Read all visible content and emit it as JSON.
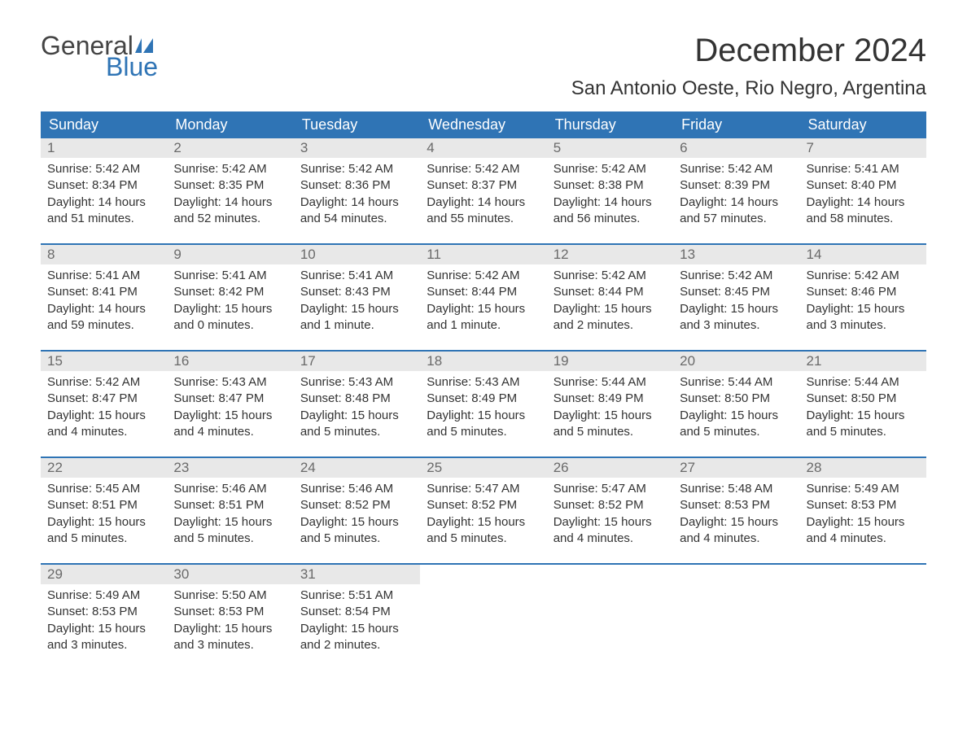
{
  "branding": {
    "logo_word1": "General",
    "logo_word2": "Blue",
    "logo_color_text": "#444444",
    "logo_color_accent": "#2f74b5"
  },
  "title": {
    "month_year": "December 2024",
    "location": "San Antonio Oeste, Rio Negro, Argentina"
  },
  "style": {
    "header_bg": "#2f74b5",
    "header_text": "#ffffff",
    "daynum_bg": "#e8e8e8",
    "daynum_text": "#6a6a6a",
    "body_text": "#333333",
    "week_divider": "#2f74b5",
    "page_bg": "#ffffff",
    "month_title_fontsize": 40,
    "location_fontsize": 24,
    "dayheader_fontsize": 18,
    "daynum_fontsize": 17,
    "cell_fontsize": 15
  },
  "day_headers": [
    "Sunday",
    "Monday",
    "Tuesday",
    "Wednesday",
    "Thursday",
    "Friday",
    "Saturday"
  ],
  "weeks": [
    [
      {
        "num": "1",
        "sunrise": "Sunrise: 5:42 AM",
        "sunset": "Sunset: 8:34 PM",
        "daylight1": "Daylight: 14 hours",
        "daylight2": "and 51 minutes."
      },
      {
        "num": "2",
        "sunrise": "Sunrise: 5:42 AM",
        "sunset": "Sunset: 8:35 PM",
        "daylight1": "Daylight: 14 hours",
        "daylight2": "and 52 minutes."
      },
      {
        "num": "3",
        "sunrise": "Sunrise: 5:42 AM",
        "sunset": "Sunset: 8:36 PM",
        "daylight1": "Daylight: 14 hours",
        "daylight2": "and 54 minutes."
      },
      {
        "num": "4",
        "sunrise": "Sunrise: 5:42 AM",
        "sunset": "Sunset: 8:37 PM",
        "daylight1": "Daylight: 14 hours",
        "daylight2": "and 55 minutes."
      },
      {
        "num": "5",
        "sunrise": "Sunrise: 5:42 AM",
        "sunset": "Sunset: 8:38 PM",
        "daylight1": "Daylight: 14 hours",
        "daylight2": "and 56 minutes."
      },
      {
        "num": "6",
        "sunrise": "Sunrise: 5:42 AM",
        "sunset": "Sunset: 8:39 PM",
        "daylight1": "Daylight: 14 hours",
        "daylight2": "and 57 minutes."
      },
      {
        "num": "7",
        "sunrise": "Sunrise: 5:41 AM",
        "sunset": "Sunset: 8:40 PM",
        "daylight1": "Daylight: 14 hours",
        "daylight2": "and 58 minutes."
      }
    ],
    [
      {
        "num": "8",
        "sunrise": "Sunrise: 5:41 AM",
        "sunset": "Sunset: 8:41 PM",
        "daylight1": "Daylight: 14 hours",
        "daylight2": "and 59 minutes."
      },
      {
        "num": "9",
        "sunrise": "Sunrise: 5:41 AM",
        "sunset": "Sunset: 8:42 PM",
        "daylight1": "Daylight: 15 hours",
        "daylight2": "and 0 minutes."
      },
      {
        "num": "10",
        "sunrise": "Sunrise: 5:41 AM",
        "sunset": "Sunset: 8:43 PM",
        "daylight1": "Daylight: 15 hours",
        "daylight2": "and 1 minute."
      },
      {
        "num": "11",
        "sunrise": "Sunrise: 5:42 AM",
        "sunset": "Sunset: 8:44 PM",
        "daylight1": "Daylight: 15 hours",
        "daylight2": "and 1 minute."
      },
      {
        "num": "12",
        "sunrise": "Sunrise: 5:42 AM",
        "sunset": "Sunset: 8:44 PM",
        "daylight1": "Daylight: 15 hours",
        "daylight2": "and 2 minutes."
      },
      {
        "num": "13",
        "sunrise": "Sunrise: 5:42 AM",
        "sunset": "Sunset: 8:45 PM",
        "daylight1": "Daylight: 15 hours",
        "daylight2": "and 3 minutes."
      },
      {
        "num": "14",
        "sunrise": "Sunrise: 5:42 AM",
        "sunset": "Sunset: 8:46 PM",
        "daylight1": "Daylight: 15 hours",
        "daylight2": "and 3 minutes."
      }
    ],
    [
      {
        "num": "15",
        "sunrise": "Sunrise: 5:42 AM",
        "sunset": "Sunset: 8:47 PM",
        "daylight1": "Daylight: 15 hours",
        "daylight2": "and 4 minutes."
      },
      {
        "num": "16",
        "sunrise": "Sunrise: 5:43 AM",
        "sunset": "Sunset: 8:47 PM",
        "daylight1": "Daylight: 15 hours",
        "daylight2": "and 4 minutes."
      },
      {
        "num": "17",
        "sunrise": "Sunrise: 5:43 AM",
        "sunset": "Sunset: 8:48 PM",
        "daylight1": "Daylight: 15 hours",
        "daylight2": "and 5 minutes."
      },
      {
        "num": "18",
        "sunrise": "Sunrise: 5:43 AM",
        "sunset": "Sunset: 8:49 PM",
        "daylight1": "Daylight: 15 hours",
        "daylight2": "and 5 minutes."
      },
      {
        "num": "19",
        "sunrise": "Sunrise: 5:44 AM",
        "sunset": "Sunset: 8:49 PM",
        "daylight1": "Daylight: 15 hours",
        "daylight2": "and 5 minutes."
      },
      {
        "num": "20",
        "sunrise": "Sunrise: 5:44 AM",
        "sunset": "Sunset: 8:50 PM",
        "daylight1": "Daylight: 15 hours",
        "daylight2": "and 5 minutes."
      },
      {
        "num": "21",
        "sunrise": "Sunrise: 5:44 AM",
        "sunset": "Sunset: 8:50 PM",
        "daylight1": "Daylight: 15 hours",
        "daylight2": "and 5 minutes."
      }
    ],
    [
      {
        "num": "22",
        "sunrise": "Sunrise: 5:45 AM",
        "sunset": "Sunset: 8:51 PM",
        "daylight1": "Daylight: 15 hours",
        "daylight2": "and 5 minutes."
      },
      {
        "num": "23",
        "sunrise": "Sunrise: 5:46 AM",
        "sunset": "Sunset: 8:51 PM",
        "daylight1": "Daylight: 15 hours",
        "daylight2": "and 5 minutes."
      },
      {
        "num": "24",
        "sunrise": "Sunrise: 5:46 AM",
        "sunset": "Sunset: 8:52 PM",
        "daylight1": "Daylight: 15 hours",
        "daylight2": "and 5 minutes."
      },
      {
        "num": "25",
        "sunrise": "Sunrise: 5:47 AM",
        "sunset": "Sunset: 8:52 PM",
        "daylight1": "Daylight: 15 hours",
        "daylight2": "and 5 minutes."
      },
      {
        "num": "26",
        "sunrise": "Sunrise: 5:47 AM",
        "sunset": "Sunset: 8:52 PM",
        "daylight1": "Daylight: 15 hours",
        "daylight2": "and 4 minutes."
      },
      {
        "num": "27",
        "sunrise": "Sunrise: 5:48 AM",
        "sunset": "Sunset: 8:53 PM",
        "daylight1": "Daylight: 15 hours",
        "daylight2": "and 4 minutes."
      },
      {
        "num": "28",
        "sunrise": "Sunrise: 5:49 AM",
        "sunset": "Sunset: 8:53 PM",
        "daylight1": "Daylight: 15 hours",
        "daylight2": "and 4 minutes."
      }
    ],
    [
      {
        "num": "29",
        "sunrise": "Sunrise: 5:49 AM",
        "sunset": "Sunset: 8:53 PM",
        "daylight1": "Daylight: 15 hours",
        "daylight2": "and 3 minutes."
      },
      {
        "num": "30",
        "sunrise": "Sunrise: 5:50 AM",
        "sunset": "Sunset: 8:53 PM",
        "daylight1": "Daylight: 15 hours",
        "daylight2": "and 3 minutes."
      },
      {
        "num": "31",
        "sunrise": "Sunrise: 5:51 AM",
        "sunset": "Sunset: 8:54 PM",
        "daylight1": "Daylight: 15 hours",
        "daylight2": "and 2 minutes."
      },
      {
        "empty": true
      },
      {
        "empty": true
      },
      {
        "empty": true
      },
      {
        "empty": true
      }
    ]
  ]
}
